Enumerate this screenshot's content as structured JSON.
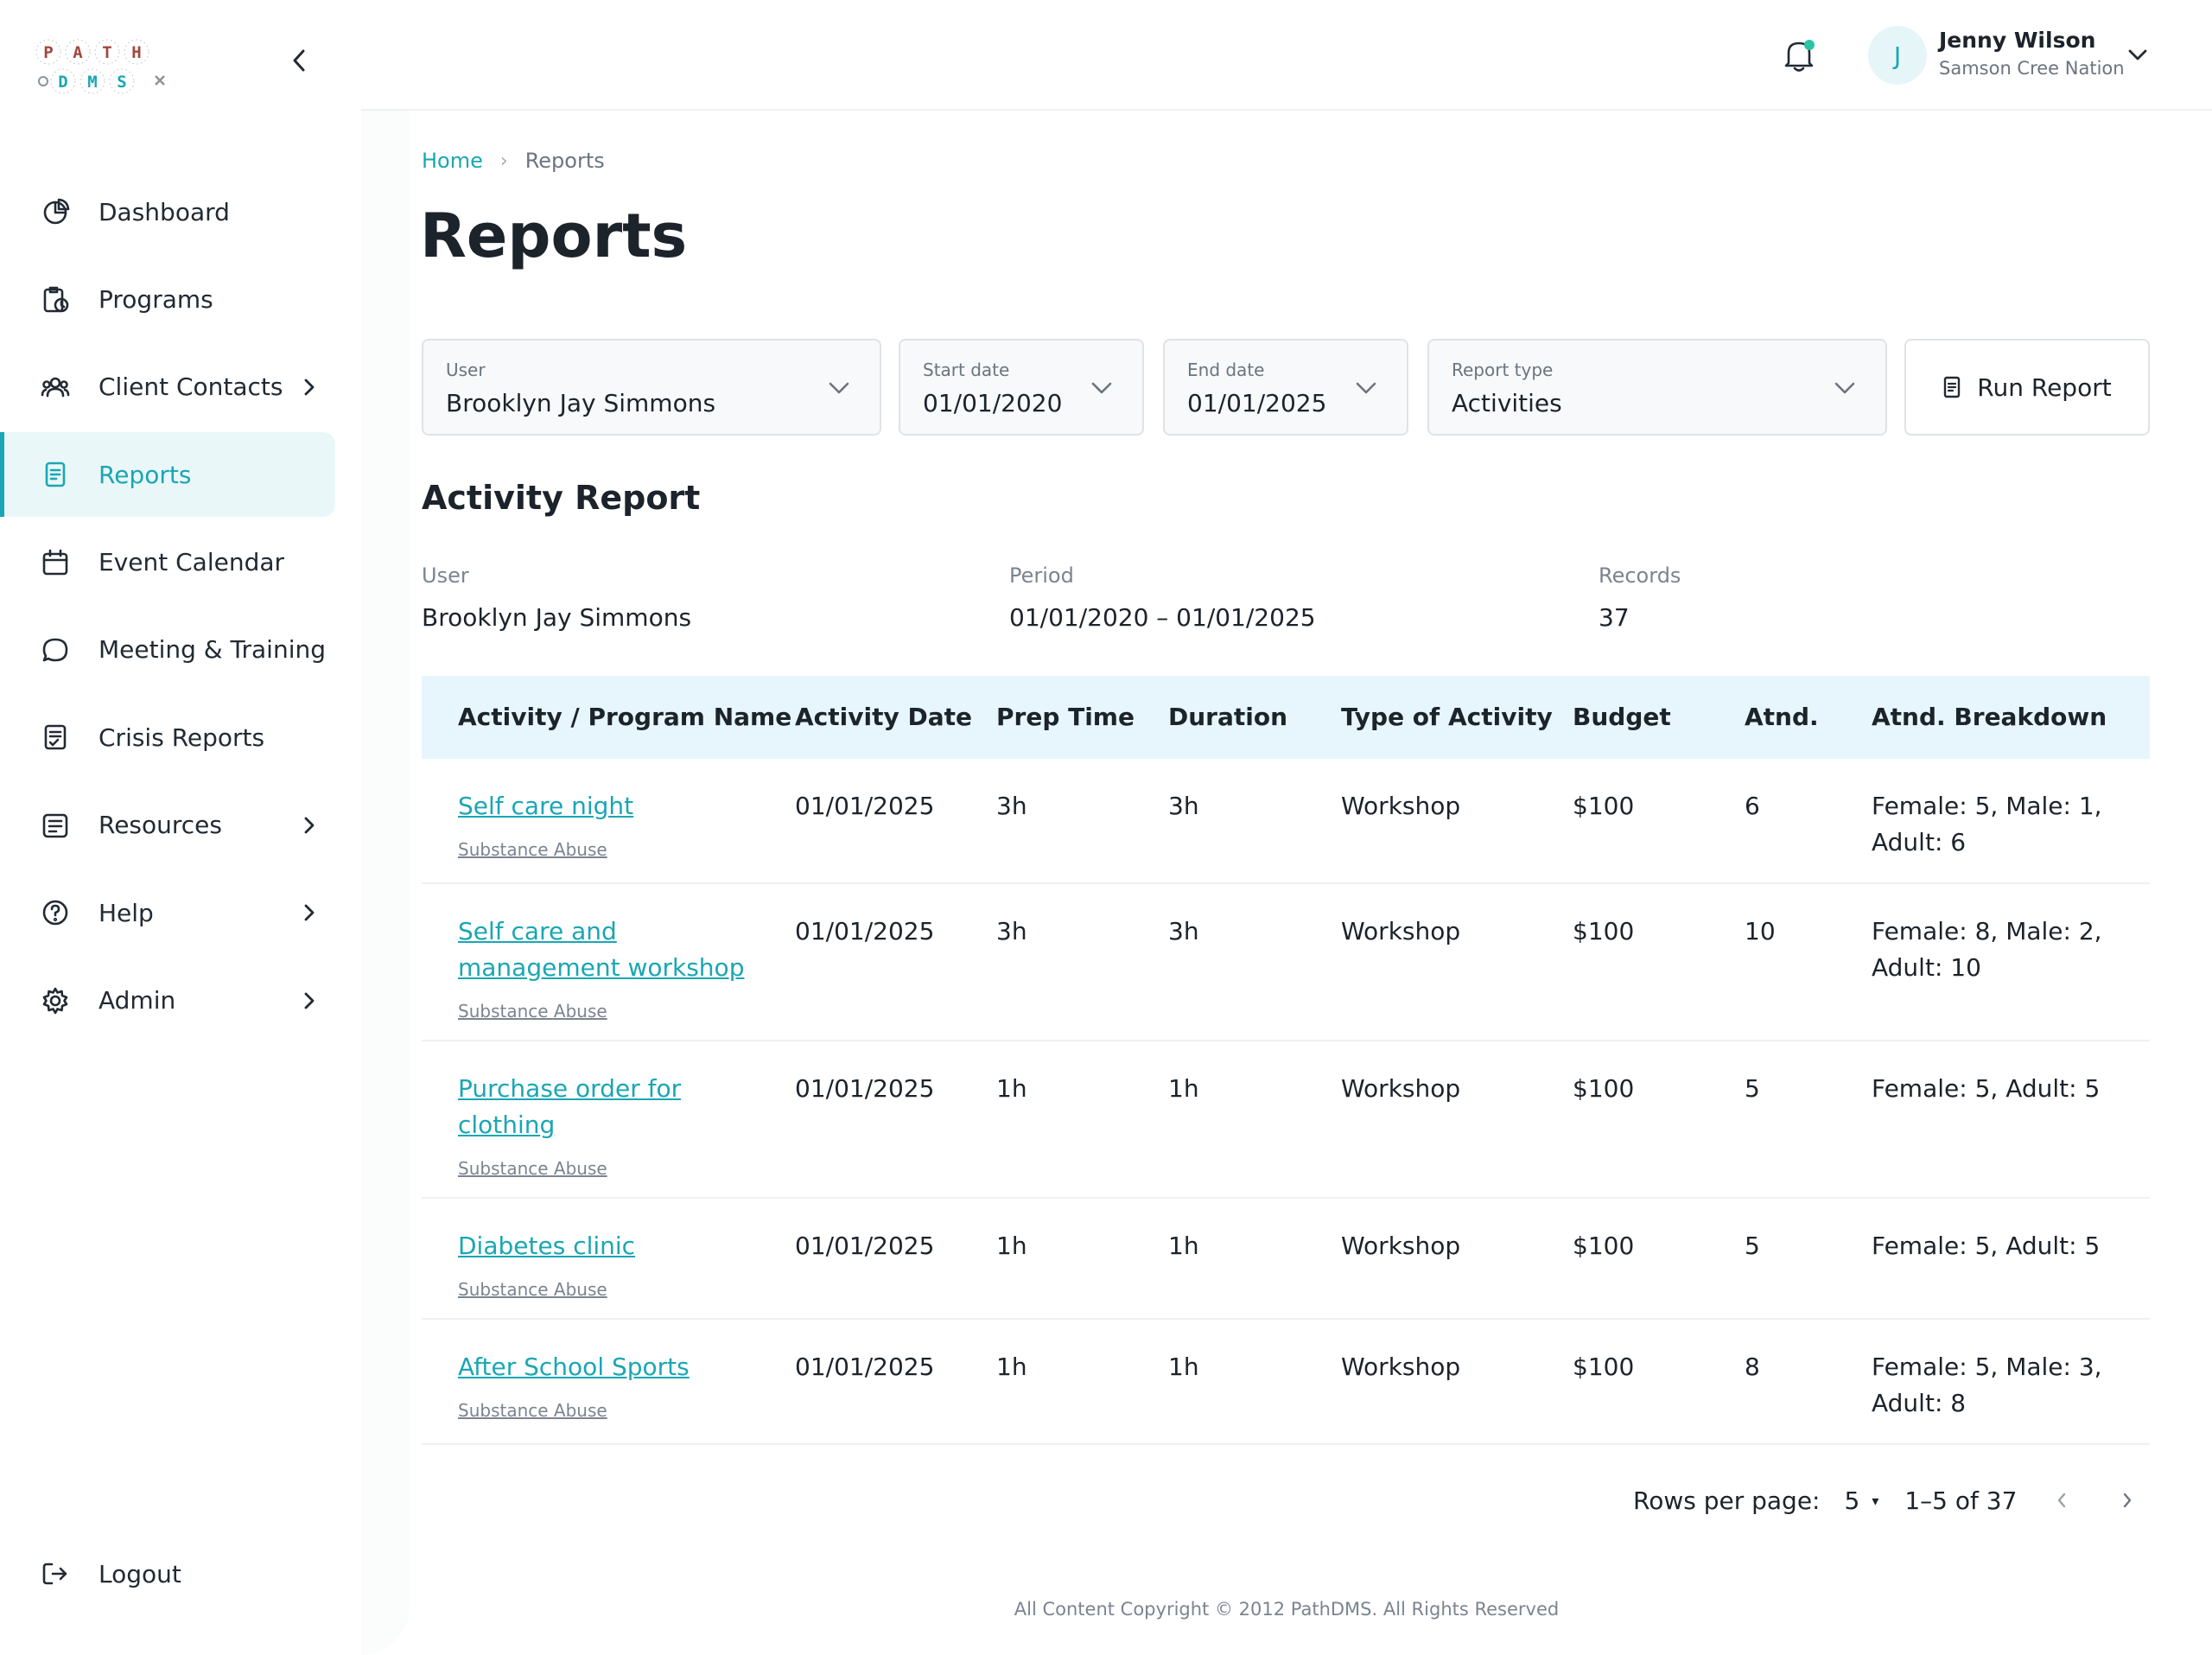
{
  "logo": {
    "letters_top": [
      "P",
      "A",
      "T",
      "H"
    ],
    "letters_bottom": [
      "D",
      "M",
      "S"
    ]
  },
  "sidebar": {
    "items": [
      {
        "label": "Dashboard",
        "icon": "pie-chart-icon"
      },
      {
        "label": "Programs",
        "icon": "clipboard-clock-icon"
      },
      {
        "label": "Client Contacts",
        "icon": "users-icon",
        "expandable": true
      },
      {
        "label": "Reports",
        "icon": "document-icon",
        "active": true
      },
      {
        "label": "Event Calendar",
        "icon": "calendar-icon"
      },
      {
        "label": "Meeting & Training",
        "icon": "chat-bubble-icon"
      },
      {
        "label": "Crisis Reports",
        "icon": "clipboard-check-icon"
      },
      {
        "label": "Resources",
        "icon": "list-icon",
        "expandable": true
      },
      {
        "label": "Help",
        "icon": "help-circle-icon",
        "expandable": true
      },
      {
        "label": "Admin",
        "icon": "gear-icon",
        "expandable": true
      }
    ],
    "logout_label": "Logout"
  },
  "header": {
    "user_initial": "J",
    "user_name": "Jenny Wilson",
    "user_org": "Samson Cree Nation"
  },
  "breadcrumb": {
    "home": "Home",
    "separator": "›",
    "current": "Reports"
  },
  "page_title": "Reports",
  "filters": {
    "user": {
      "label": "User",
      "value": "Brooklyn Jay Simmons"
    },
    "start_date": {
      "label": "Start date",
      "value": "01/01/2020"
    },
    "end_date": {
      "label": "End date",
      "value": "01/01/2025"
    },
    "report_type": {
      "label": "Report type",
      "value": "Activities"
    },
    "run_label": "Run Report"
  },
  "report": {
    "title": "Activity Report",
    "summary": {
      "user_label": "User",
      "user_value": "Brooklyn Jay Simmons",
      "period_label": "Period",
      "period_value": "01/01/2020 – 01/01/2025",
      "records_label": "Records",
      "records_value": "37"
    },
    "columns": [
      "Activity / Program Name",
      "Activity Date",
      "Prep Time",
      "Duration",
      "Type of Activity",
      "Budget",
      "Atnd.",
      "Atnd. Breakdown"
    ],
    "rows": [
      {
        "name": [
          "Self care night"
        ],
        "category": "Substance Abuse",
        "date": "01/01/2025",
        "prep": "3h",
        "duration": "3h",
        "type": "Workshop",
        "budget": "$100",
        "atnd": "6",
        "breakdown": [
          "Female: 5, Male: 1,",
          "Adult: 6"
        ]
      },
      {
        "name": [
          "Self care and",
          "management workshop"
        ],
        "category": "Substance Abuse",
        "date": "01/01/2025",
        "prep": "3h",
        "duration": "3h",
        "type": "Workshop",
        "budget": "$100",
        "atnd": "10",
        "breakdown": [
          "Female: 8, Male: 2,",
          "Adult: 10"
        ]
      },
      {
        "name": [
          "Purchase order for",
          "clothing"
        ],
        "category": "Substance Abuse",
        "date": "01/01/2025",
        "prep": "1h",
        "duration": "1h",
        "type": "Workshop",
        "budget": "$100",
        "atnd": "5",
        "breakdown": [
          "Female: 5, Adult: 5"
        ]
      },
      {
        "name": [
          "Diabetes clinic"
        ],
        "category": "Substance Abuse",
        "date": "01/01/2025",
        "prep": "1h",
        "duration": "1h",
        "type": "Workshop",
        "budget": "$100",
        "atnd": "5",
        "breakdown": [
          "Female: 5, Adult: 5"
        ]
      },
      {
        "name": [
          "After School Sports"
        ],
        "category": "Substance Abuse",
        "date": "01/01/2025",
        "prep": "1h",
        "duration": "1h",
        "type": "Workshop",
        "budget": "$100",
        "atnd": "8",
        "breakdown": [
          "Female: 5, Male: 3,",
          "Adult: 8"
        ]
      }
    ]
  },
  "pagination": {
    "rows_per_page_label": "Rows per page:",
    "rows_per_page": "5",
    "range": "1–5 of 37"
  },
  "footer": "All Content Copyright © 2012 PathDMS. All Rights Reserved",
  "colors": {
    "accent": "#1aa6b4",
    "active_bg": "#eaf7f8",
    "table_header_bg": "#e6f6fc",
    "logo_red": "#a0473d",
    "notification_dot": "#2bc4a6"
  }
}
